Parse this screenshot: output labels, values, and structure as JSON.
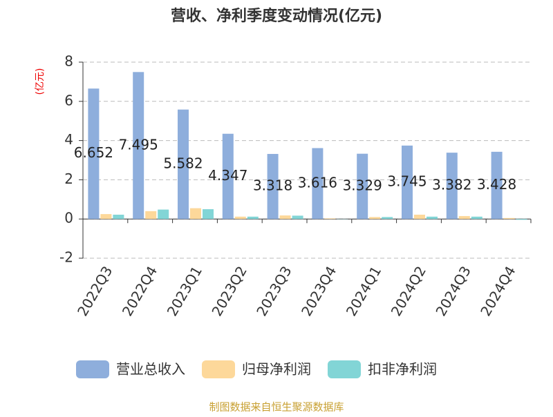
{
  "chart_data": {
    "type": "bar",
    "title": "营收、净利季度变动情况(亿元)",
    "y_label": "(亿元)",
    "categories": [
      "2022Q3",
      "2022Q4",
      "2023Q1",
      "2023Q2",
      "2023Q3",
      "2023Q4",
      "2024Q1",
      "2024Q2",
      "2024Q3",
      "2024Q4"
    ],
    "series": [
      {
        "name": "营业总收入",
        "color": "#8eaedc",
        "values": [
          6.652,
          7.495,
          5.582,
          4.347,
          3.318,
          3.616,
          3.329,
          3.745,
          3.382,
          3.428
        ]
      },
      {
        "name": "归母净利润",
        "color": "#fdd89a",
        "values": [
          0.25,
          0.4,
          0.55,
          0.12,
          0.18,
          0.03,
          0.1,
          0.22,
          0.15,
          0.05
        ]
      },
      {
        "name": "扣非净利润",
        "color": "#82d5d6",
        "values": [
          0.22,
          0.48,
          0.5,
          0.12,
          0.17,
          -0.01,
          0.1,
          0.12,
          0.12,
          -0.04
        ]
      }
    ],
    "ylim": [
      -2,
      8
    ],
    "yticks": [
      -2,
      0,
      2,
      4,
      6,
      8
    ],
    "grid": true,
    "legend": "bottom",
    "source": "制图数据来自恒生聚源数据库"
  }
}
